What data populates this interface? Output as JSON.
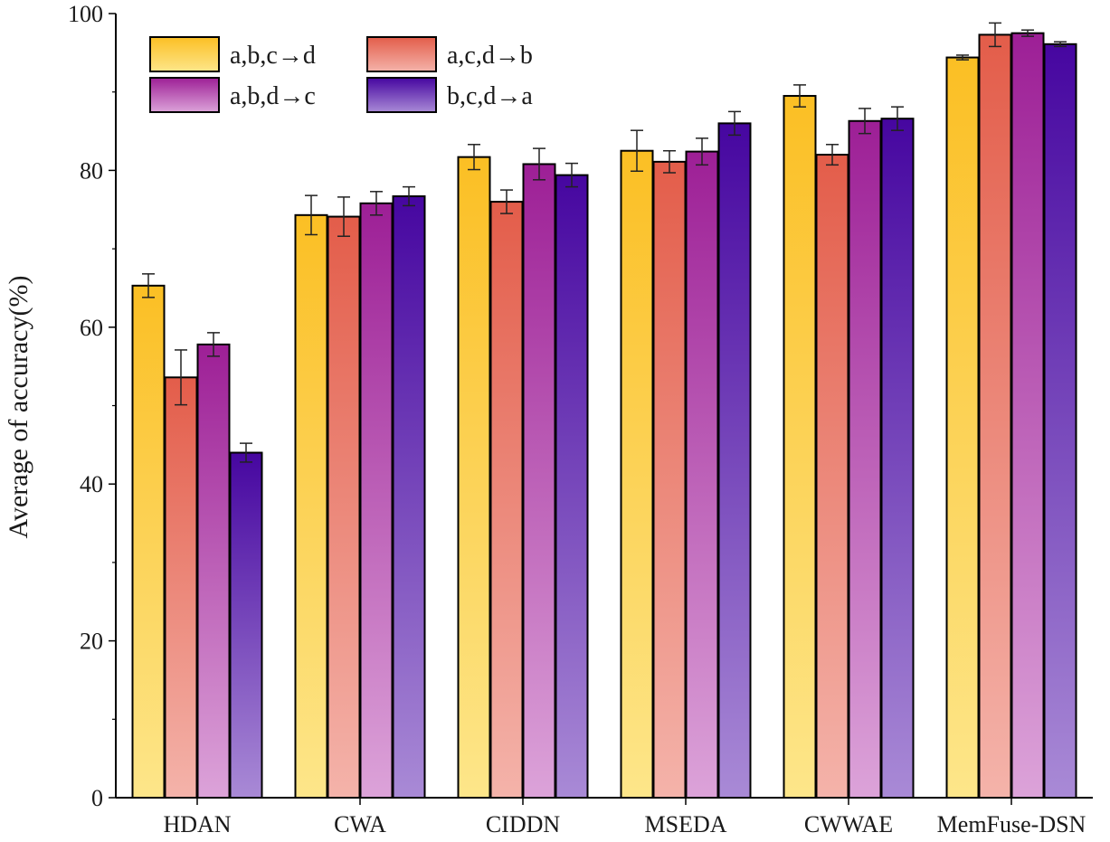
{
  "chart_data": {
    "type": "bar",
    "title": "",
    "xlabel": "",
    "ylabel": "Average of accuracy(%)",
    "ylim": [
      0,
      100
    ],
    "yticks": [
      0,
      20,
      40,
      60,
      80,
      100
    ],
    "grid": false,
    "legend_position": "top-left",
    "categories": [
      "HDAN",
      "CWA",
      "CIDDN",
      "MSEDA",
      "CWWAE",
      "MemFuse-DSN"
    ],
    "series": [
      {
        "name": "a,b,c→d",
        "color_top": "#fbbf24",
        "color_bottom": "#fde68a",
        "values": [
          65.3,
          74.3,
          81.7,
          82.5,
          89.5,
          94.4
        ],
        "errors": [
          1.5,
          2.5,
          1.6,
          2.6,
          1.4,
          0.3
        ]
      },
      {
        "name": "a,c,d→b",
        "color_top": "#e35d4a",
        "color_bottom": "#f4b3aa",
        "values": [
          53.6,
          74.1,
          76.0,
          81.1,
          82.0,
          97.3
        ],
        "errors": [
          3.5,
          2.5,
          1.5,
          1.4,
          1.3,
          1.5
        ]
      },
      {
        "name": "a,b,d→c",
        "color_top": "#9d1f96",
        "color_bottom": "#dca3d9",
        "values": [
          57.8,
          75.8,
          80.8,
          82.4,
          86.3,
          97.5
        ],
        "errors": [
          1.5,
          1.5,
          2.0,
          1.7,
          1.6,
          0.4
        ]
      },
      {
        "name": "b,c,d→a",
        "color_top": "#4606a0",
        "color_bottom": "#a98ad6",
        "values": [
          44.0,
          76.7,
          79.4,
          86.0,
          86.6,
          96.1
        ],
        "errors": [
          1.2,
          1.2,
          1.5,
          1.5,
          1.5,
          0.3
        ]
      }
    ]
  }
}
